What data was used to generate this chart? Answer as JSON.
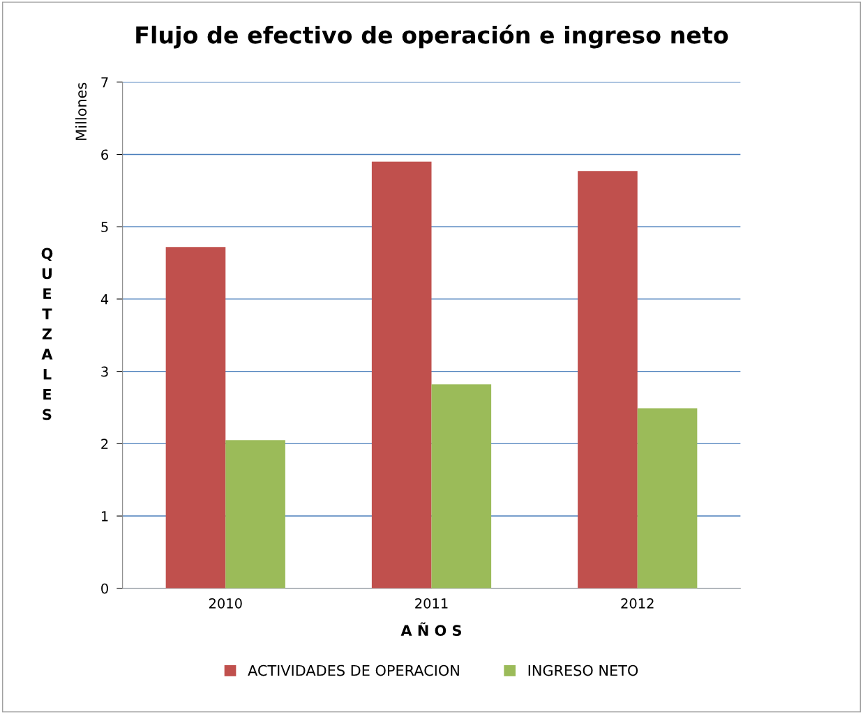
{
  "chart_data": {
    "type": "bar",
    "title": "Flujo de efectivo de operación e ingreso neto",
    "xlabel": "A Ñ O S",
    "ylabel": "QUETZALES",
    "annotations": [
      "Millones"
    ],
    "categories": [
      "2010",
      "2011",
      "2012"
    ],
    "series": [
      {
        "name": "ACTIVIDADES DE OPERACION",
        "color": "#c0504d",
        "values": [
          4.72,
          5.9,
          5.77
        ]
      },
      {
        "name": "INGRESO NETO",
        "color": "#9bbb59",
        "values": [
          2.05,
          2.82,
          2.49
        ]
      }
    ],
    "ylim": [
      0,
      7
    ],
    "yticks": [
      0,
      1,
      2,
      3,
      4,
      5,
      6,
      7
    ],
    "grid": "y",
    "legend": "bottom"
  }
}
